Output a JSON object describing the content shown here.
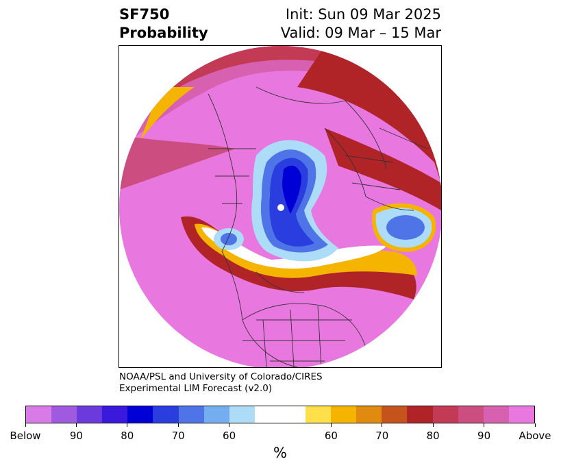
{
  "header": {
    "variable": "SF750",
    "product": "Probability",
    "init": "Init: Sun 09 Mar 2025",
    "valid": "Valid: 09 Mar – 15 Mar"
  },
  "credit": {
    "line1": "NOAA/PSL and University of Colorado/CIRES",
    "line2": "Experimental LIM Forecast (v2.0)"
  },
  "colorbar": {
    "units": "%",
    "colors": [
      "#d87ae8",
      "#a05ae0",
      "#6c3adc",
      "#3a18dc",
      "#0000d6",
      "#2a3ee0",
      "#4e74e8",
      "#74aef0",
      "#acdcf8",
      "#ffffff",
      "#ffffff",
      "#ffe04a",
      "#f4b400",
      "#e08a10",
      "#c4541c",
      "#b02428",
      "#c23a54",
      "#cc4e80",
      "#d860b0",
      "#e878e0"
    ],
    "ticks": [
      {
        "label": "Below",
        "index": 0
      },
      {
        "label": "90",
        "index": 2
      },
      {
        "label": "80",
        "index": 4
      },
      {
        "label": "70",
        "index": 6
      },
      {
        "label": "60",
        "index": 8
      },
      {
        "label": "60",
        "index": 12
      },
      {
        "label": "70",
        "index": 14
      },
      {
        "label": "80",
        "index": 16
      },
      {
        "label": "90",
        "index": 18
      },
      {
        "label": "Above",
        "index": 20
      }
    ]
  },
  "map": {
    "projection": "north-polar-stereographic",
    "above_color": "#e878e0",
    "below_color": "#2a3ee0"
  }
}
